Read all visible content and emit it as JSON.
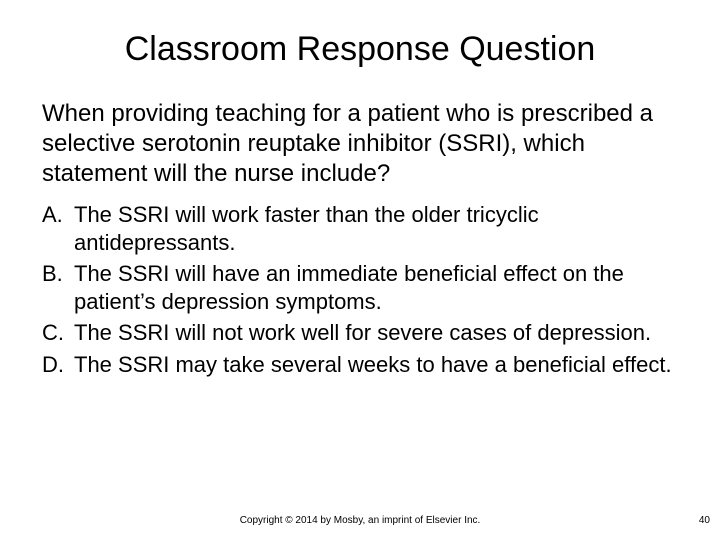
{
  "title": "Classroom Response Question",
  "question": "When providing teaching for a patient who is prescribed a selective serotonin reuptake inhibitor (SSRI), which statement will the nurse include?",
  "options": [
    {
      "letter": "A.",
      "text": "The SSRI will work faster than the older tricyclic antidepressants."
    },
    {
      "letter": "B.",
      "text": "The SSRI will have an immediate beneficial effect on the patient’s depression symptoms."
    },
    {
      "letter": "C.",
      "text": "The SSRI will not work well for severe cases of depression."
    },
    {
      "letter": "D.",
      "text": "The SSRI may take several weeks to have a beneficial effect."
    }
  ],
  "footer": "Copyright © 2014 by Mosby, an imprint of Elsevier Inc.",
  "page_number": "40",
  "styling": {
    "background_color": "#ffffff",
    "text_color": "#000000",
    "font_family": "Arial",
    "title_fontsize": 34,
    "body_fontsize": 24,
    "option_fontsize": 22,
    "footer_fontsize": 10,
    "slide_width": 720,
    "slide_height": 540
  }
}
